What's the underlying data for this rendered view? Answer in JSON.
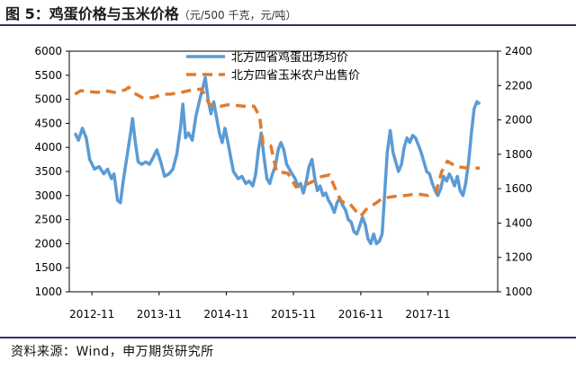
{
  "title": {
    "main": "图 5：鸡蛋价格与玉米价格",
    "unit": "（元/500 千克，元/吨）"
  },
  "source": "资料来源：Wind，申万期货研究所",
  "colors": {
    "egg": "#5b9bd5",
    "corn": "#e07b2e",
    "frame": "#3a2d6e"
  },
  "chart_data": {
    "type": "line",
    "x_range": [
      "2012-07-01",
      "2018-11-15"
    ],
    "x_ticks": [
      {
        "date": "2012-11-01",
        "label": "2012-11"
      },
      {
        "date": "2013-11-01",
        "label": "2013-11"
      },
      {
        "date": "2014-11-01",
        "label": "2014-11"
      },
      {
        "date": "2015-11-01",
        "label": "2015-11"
      },
      {
        "date": "2016-11-01",
        "label": "2016-11"
      },
      {
        "date": "2017-11-01",
        "label": "2017-11"
      }
    ],
    "y_left": {
      "min": 1000,
      "max": 6000,
      "ticks": [
        "1000",
        "1500",
        "2000",
        "2500",
        "3000",
        "3500",
        "4000",
        "4500",
        "5000",
        "5500",
        "6000"
      ]
    },
    "y_right": {
      "min": 1000,
      "max": 2400,
      "ticks": [
        "1000",
        "1200",
        "1400",
        "1600",
        "1800",
        "2000",
        "2200",
        "2400"
      ]
    },
    "legend": [
      {
        "name": "北方四省鸡蛋出场均价",
        "style": "solid",
        "axis": "left"
      },
      {
        "name": "北方四省玉米农户出售价",
        "style": "dashed",
        "axis": "right"
      }
    ],
    "series": [
      {
        "name": "北方四省鸡蛋出场均价",
        "axis": "left",
        "points": [
          [
            "2012-08-01",
            4300
          ],
          [
            "2012-08-20",
            4150
          ],
          [
            "2012-09-10",
            4400
          ],
          [
            "2012-10-01",
            4200
          ],
          [
            "2012-10-20",
            3750
          ],
          [
            "2012-11-15",
            3550
          ],
          [
            "2012-12-10",
            3600
          ],
          [
            "2013-01-05",
            3450
          ],
          [
            "2013-01-25",
            3550
          ],
          [
            "2013-02-15",
            3350
          ],
          [
            "2013-03-01",
            3450
          ],
          [
            "2013-03-20",
            2900
          ],
          [
            "2013-04-05",
            2850
          ],
          [
            "2013-04-20",
            3300
          ],
          [
            "2013-05-10",
            3800
          ],
          [
            "2013-05-30",
            4300
          ],
          [
            "2013-06-10",
            4600
          ],
          [
            "2013-06-25",
            4100
          ],
          [
            "2013-07-10",
            3700
          ],
          [
            "2013-07-30",
            3650
          ],
          [
            "2013-08-20",
            3700
          ],
          [
            "2013-09-10",
            3650
          ],
          [
            "2013-10-01",
            3800
          ],
          [
            "2013-10-20",
            3950
          ],
          [
            "2013-11-10",
            3700
          ],
          [
            "2013-12-01",
            3400
          ],
          [
            "2013-12-25",
            3450
          ],
          [
            "2014-01-15",
            3550
          ],
          [
            "2014-02-05",
            3850
          ],
          [
            "2014-02-25",
            4400
          ],
          [
            "2014-03-10",
            4900
          ],
          [
            "2014-03-25",
            4200
          ],
          [
            "2014-04-10",
            4300
          ],
          [
            "2014-04-30",
            4150
          ],
          [
            "2014-05-20",
            4650
          ],
          [
            "2014-06-10",
            5000
          ],
          [
            "2014-06-30",
            5300
          ],
          [
            "2014-07-10",
            5450
          ],
          [
            "2014-07-25",
            5000
          ],
          [
            "2014-08-10",
            4700
          ],
          [
            "2014-08-25",
            4950
          ],
          [
            "2014-09-10",
            4600
          ],
          [
            "2014-09-25",
            4300
          ],
          [
            "2014-10-10",
            4100
          ],
          [
            "2014-10-25",
            4400
          ],
          [
            "2014-11-10",
            4100
          ],
          [
            "2014-11-25",
            3800
          ],
          [
            "2014-12-10",
            3500
          ],
          [
            "2015-01-05",
            3350
          ],
          [
            "2015-01-25",
            3400
          ],
          [
            "2015-02-15",
            3250
          ],
          [
            "2015-03-05",
            3300
          ],
          [
            "2015-03-25",
            3200
          ],
          [
            "2015-04-10",
            3450
          ],
          [
            "2015-04-25",
            3950
          ],
          [
            "2015-05-10",
            4300
          ],
          [
            "2015-05-25",
            3800
          ],
          [
            "2015-06-10",
            3350
          ],
          [
            "2015-06-25",
            3250
          ],
          [
            "2015-07-10",
            3450
          ],
          [
            "2015-07-25",
            3600
          ],
          [
            "2015-08-10",
            3950
          ],
          [
            "2015-08-25",
            4100
          ],
          [
            "2015-09-10",
            3950
          ],
          [
            "2015-09-25",
            3650
          ],
          [
            "2015-10-10",
            3550
          ],
          [
            "2015-10-25",
            3450
          ],
          [
            "2015-11-10",
            3350
          ],
          [
            "2015-11-25",
            3200
          ],
          [
            "2015-12-10",
            3250
          ],
          [
            "2015-12-25",
            3050
          ],
          [
            "2016-01-10",
            3300
          ],
          [
            "2016-01-25",
            3600
          ],
          [
            "2016-02-10",
            3750
          ],
          [
            "2016-02-25",
            3350
          ],
          [
            "2016-03-10",
            3100
          ],
          [
            "2016-03-25",
            3200
          ],
          [
            "2016-04-10",
            3000
          ],
          [
            "2016-04-25",
            3050
          ],
          [
            "2016-05-10",
            2900
          ],
          [
            "2016-05-25",
            2800
          ],
          [
            "2016-06-10",
            2650
          ],
          [
            "2016-06-25",
            2850
          ],
          [
            "2016-07-10",
            2950
          ],
          [
            "2016-07-25",
            2800
          ],
          [
            "2016-08-10",
            2700
          ],
          [
            "2016-08-25",
            2500
          ],
          [
            "2016-09-10",
            2450
          ],
          [
            "2016-09-25",
            2250
          ],
          [
            "2016-10-10",
            2200
          ],
          [
            "2016-10-25",
            2350
          ],
          [
            "2016-11-10",
            2550
          ],
          [
            "2016-11-25",
            2400
          ],
          [
            "2016-12-10",
            2100
          ],
          [
            "2016-12-25",
            2000
          ],
          [
            "2017-01-10",
            2200
          ],
          [
            "2017-01-25",
            2000
          ],
          [
            "2017-02-10",
            2050
          ],
          [
            "2017-02-25",
            2200
          ],
          [
            "2017-03-10",
            3000
          ],
          [
            "2017-03-25",
            3900
          ],
          [
            "2017-04-10",
            4350
          ],
          [
            "2017-04-25",
            3900
          ],
          [
            "2017-05-10",
            3700
          ],
          [
            "2017-05-25",
            3500
          ],
          [
            "2017-06-10",
            3650
          ],
          [
            "2017-06-25",
            4000
          ],
          [
            "2017-07-10",
            4200
          ],
          [
            "2017-07-25",
            4100
          ],
          [
            "2017-08-10",
            4250
          ],
          [
            "2017-08-25",
            4200
          ],
          [
            "2017-09-10",
            4050
          ],
          [
            "2017-09-25",
            3900
          ],
          [
            "2017-10-10",
            3700
          ],
          [
            "2017-10-25",
            3500
          ],
          [
            "2017-11-10",
            3450
          ],
          [
            "2017-11-25",
            3250
          ],
          [
            "2017-12-10",
            3100
          ],
          [
            "2017-12-25",
            3000
          ],
          [
            "2018-01-10",
            3150
          ],
          [
            "2018-01-25",
            3400
          ],
          [
            "2018-02-10",
            3300
          ],
          [
            "2018-02-25",
            3450
          ],
          [
            "2018-03-10",
            3350
          ],
          [
            "2018-03-25",
            3200
          ],
          [
            "2018-04-10",
            3400
          ],
          [
            "2018-04-25",
            3100
          ],
          [
            "2018-05-10",
            3000
          ],
          [
            "2018-05-25",
            3250
          ],
          [
            "2018-06-10",
            3700
          ],
          [
            "2018-06-25",
            4300
          ],
          [
            "2018-07-10",
            4800
          ],
          [
            "2018-07-25",
            4950
          ],
          [
            "2018-08-10",
            4900
          ]
        ]
      },
      {
        "name": "北方四省玉米农户出售价",
        "axis": "right",
        "points": [
          [
            "2012-08-01",
            2150
          ],
          [
            "2012-09-01",
            2170
          ],
          [
            "2012-10-15",
            2165
          ],
          [
            "2012-12-01",
            2160
          ],
          [
            "2013-01-15",
            2170
          ],
          [
            "2013-03-01",
            2160
          ],
          [
            "2013-05-01",
            2175
          ],
          [
            "2013-05-20",
            2190
          ],
          [
            "2013-06-20",
            2155
          ],
          [
            "2013-08-01",
            2130
          ],
          [
            "2013-10-01",
            2130
          ],
          [
            "2013-11-20",
            2150
          ],
          [
            "2014-01-01",
            2150
          ],
          [
            "2014-03-01",
            2160
          ],
          [
            "2014-05-01",
            2175
          ],
          [
            "2014-06-20",
            2180
          ],
          [
            "2014-08-01",
            2090
          ],
          [
            "2014-10-01",
            2080
          ],
          [
            "2014-11-20",
            2090
          ],
          [
            "2014-12-20",
            2085
          ],
          [
            "2015-02-01",
            2080
          ],
          [
            "2015-04-01",
            2080
          ],
          [
            "2015-05-01",
            2020
          ],
          [
            "2015-05-20",
            1860
          ],
          [
            "2015-07-01",
            1850
          ],
          [
            "2015-08-01",
            1700
          ],
          [
            "2015-10-01",
            1690
          ],
          [
            "2015-11-15",
            1610
          ],
          [
            "2016-01-01",
            1620
          ],
          [
            "2016-03-01",
            1650
          ],
          [
            "2016-04-01",
            1670
          ],
          [
            "2016-05-15",
            1680
          ],
          [
            "2016-06-15",
            1600
          ],
          [
            "2016-07-15",
            1530
          ],
          [
            "2016-08-01",
            1520
          ],
          [
            "2016-09-01",
            1515
          ],
          [
            "2016-10-01",
            1475
          ],
          [
            "2016-11-01",
            1440
          ],
          [
            "2016-12-01",
            1480
          ],
          [
            "2017-01-01",
            1500
          ],
          [
            "2017-03-01",
            1545
          ],
          [
            "2017-05-01",
            1555
          ],
          [
            "2017-07-01",
            1560
          ],
          [
            "2017-09-01",
            1570
          ],
          [
            "2017-11-01",
            1560
          ],
          [
            "2017-12-15",
            1580
          ],
          [
            "2018-01-15",
            1700
          ],
          [
            "2018-02-15",
            1760
          ],
          [
            "2018-04-01",
            1730
          ],
          [
            "2018-06-01",
            1720
          ],
          [
            "2018-08-10",
            1720
          ]
        ]
      }
    ]
  }
}
